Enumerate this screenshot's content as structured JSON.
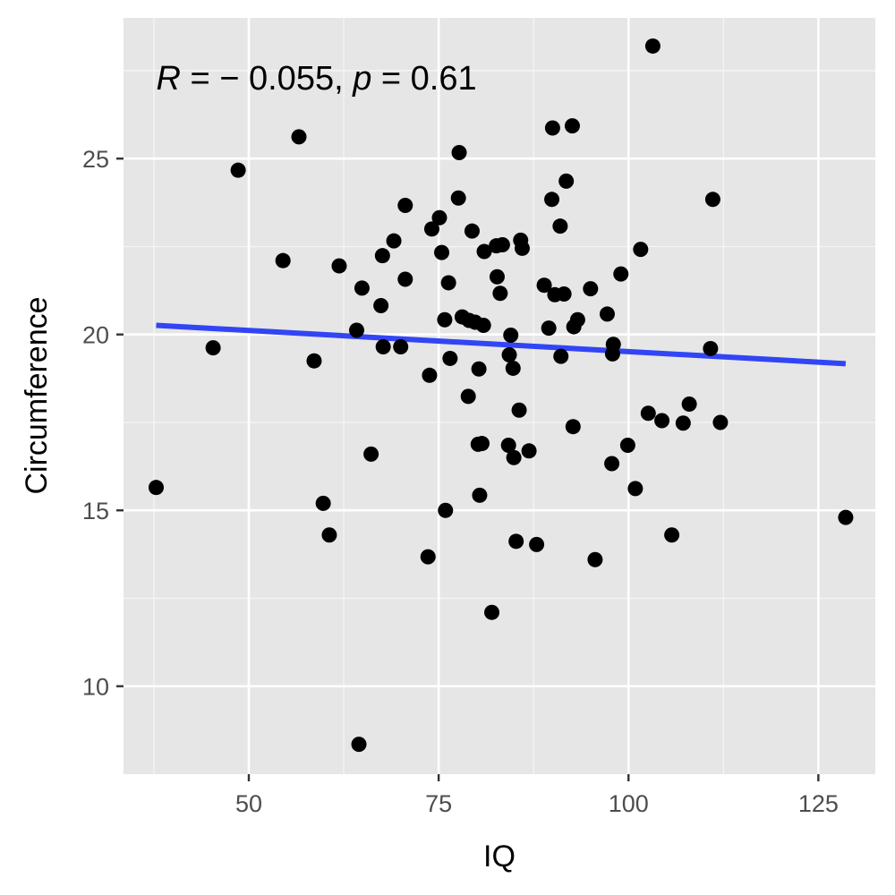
{
  "chart_data": {
    "type": "scatter",
    "xlabel": "IQ",
    "ylabel": "Circumference",
    "xlim": [
      33.5,
      132.5
    ],
    "ylim": [
      7.5,
      29.0
    ],
    "x_ticks": [
      50,
      75,
      100,
      125
    ],
    "x_tick_labels": [
      "50",
      "75",
      "100",
      "125"
    ],
    "y_ticks": [
      10,
      15,
      20,
      25
    ],
    "y_tick_labels": [
      "10",
      "15",
      "20",
      "25"
    ],
    "x_minor": [
      37.5,
      62.5,
      87.5,
      112.5
    ],
    "y_minor": [
      12.5,
      17.5,
      22.5,
      27.5
    ],
    "grid": true,
    "annotation": {
      "r_symbol": "R",
      "r_text": " = − 0.055, ",
      "p_symbol": "p",
      "p_text": " = 0.61",
      "x": 37.8,
      "y": 27.3
    },
    "regression_line": {
      "x": [
        37.8,
        128.6
      ],
      "y": [
        20.26,
        19.17
      ],
      "color": "#3245f5"
    },
    "point_color": "#000000",
    "panel_background": "#e6e6e6",
    "points": [
      {
        "x": 37.8,
        "y": 15.65
      },
      {
        "x": 45.3,
        "y": 19.62
      },
      {
        "x": 48.6,
        "y": 24.67
      },
      {
        "x": 54.5,
        "y": 22.1
      },
      {
        "x": 56.6,
        "y": 25.62
      },
      {
        "x": 58.6,
        "y": 19.25
      },
      {
        "x": 59.8,
        "y": 15.2
      },
      {
        "x": 60.6,
        "y": 14.3
      },
      {
        "x": 61.9,
        "y": 21.95
      },
      {
        "x": 64.2,
        "y": 20.12
      },
      {
        "x": 64.5,
        "y": 8.35
      },
      {
        "x": 64.9,
        "y": 21.32
      },
      {
        "x": 66.1,
        "y": 16.6
      },
      {
        "x": 67.4,
        "y": 20.82
      },
      {
        "x": 67.6,
        "y": 22.24
      },
      {
        "x": 67.7,
        "y": 19.65
      },
      {
        "x": 69.1,
        "y": 22.66
      },
      {
        "x": 70.0,
        "y": 19.65
      },
      {
        "x": 70.6,
        "y": 21.57
      },
      {
        "x": 70.6,
        "y": 23.67
      },
      {
        "x": 73.6,
        "y": 13.68
      },
      {
        "x": 73.8,
        "y": 18.84
      },
      {
        "x": 74.1,
        "y": 23.0
      },
      {
        "x": 75.1,
        "y": 23.32
      },
      {
        "x": 75.4,
        "y": 22.33
      },
      {
        "x": 75.8,
        "y": 20.42
      },
      {
        "x": 75.9,
        "y": 15.0
      },
      {
        "x": 76.3,
        "y": 21.47
      },
      {
        "x": 76.5,
        "y": 19.32
      },
      {
        "x": 77.6,
        "y": 23.88
      },
      {
        "x": 77.7,
        "y": 25.17
      },
      {
        "x": 78.1,
        "y": 20.5
      },
      {
        "x": 78.9,
        "y": 18.24
      },
      {
        "x": 79.0,
        "y": 20.4
      },
      {
        "x": 79.4,
        "y": 22.94
      },
      {
        "x": 79.8,
        "y": 20.35
      },
      {
        "x": 80.2,
        "y": 16.88
      },
      {
        "x": 80.3,
        "y": 19.02
      },
      {
        "x": 80.4,
        "y": 15.43
      },
      {
        "x": 80.7,
        "y": 16.9
      },
      {
        "x": 80.9,
        "y": 20.26
      },
      {
        "x": 81.0,
        "y": 22.36
      },
      {
        "x": 82.0,
        "y": 12.1
      },
      {
        "x": 82.6,
        "y": 22.52
      },
      {
        "x": 82.7,
        "y": 21.64
      },
      {
        "x": 83.1,
        "y": 21.17
      },
      {
        "x": 83.4,
        "y": 22.55
      },
      {
        "x": 84.2,
        "y": 16.85
      },
      {
        "x": 84.3,
        "y": 19.42
      },
      {
        "x": 84.5,
        "y": 19.98
      },
      {
        "x": 84.8,
        "y": 19.04
      },
      {
        "x": 84.9,
        "y": 16.5
      },
      {
        "x": 85.2,
        "y": 14.12
      },
      {
        "x": 85.6,
        "y": 17.85
      },
      {
        "x": 85.8,
        "y": 22.68
      },
      {
        "x": 86.0,
        "y": 22.45
      },
      {
        "x": 86.9,
        "y": 16.69
      },
      {
        "x": 87.9,
        "y": 14.03
      },
      {
        "x": 88.9,
        "y": 21.4
      },
      {
        "x": 89.5,
        "y": 20.18
      },
      {
        "x": 89.9,
        "y": 23.84
      },
      {
        "x": 90.0,
        "y": 25.87
      },
      {
        "x": 90.3,
        "y": 21.13
      },
      {
        "x": 91.0,
        "y": 23.08
      },
      {
        "x": 91.1,
        "y": 19.38
      },
      {
        "x": 91.5,
        "y": 21.15
      },
      {
        "x": 91.8,
        "y": 24.36
      },
      {
        "x": 92.6,
        "y": 25.93
      },
      {
        "x": 92.7,
        "y": 17.38
      },
      {
        "x": 92.8,
        "y": 20.22
      },
      {
        "x": 93.3,
        "y": 20.42
      },
      {
        "x": 95.0,
        "y": 21.3
      },
      {
        "x": 95.6,
        "y": 13.6
      },
      {
        "x": 97.2,
        "y": 20.58
      },
      {
        "x": 97.8,
        "y": 16.33
      },
      {
        "x": 97.9,
        "y": 19.45
      },
      {
        "x": 98.0,
        "y": 19.72
      },
      {
        "x": 99.0,
        "y": 21.72
      },
      {
        "x": 99.9,
        "y": 16.85
      },
      {
        "x": 100.9,
        "y": 15.62
      },
      {
        "x": 101.6,
        "y": 22.42
      },
      {
        "x": 102.6,
        "y": 17.76
      },
      {
        "x": 103.2,
        "y": 28.2
      },
      {
        "x": 104.4,
        "y": 17.55
      },
      {
        "x": 105.7,
        "y": 14.3
      },
      {
        "x": 107.2,
        "y": 17.48
      },
      {
        "x": 108.0,
        "y": 18.02
      },
      {
        "x": 110.8,
        "y": 19.6
      },
      {
        "x": 111.1,
        "y": 23.84
      },
      {
        "x": 112.1,
        "y": 17.5
      },
      {
        "x": 128.6,
        "y": 14.8
      }
    ]
  }
}
